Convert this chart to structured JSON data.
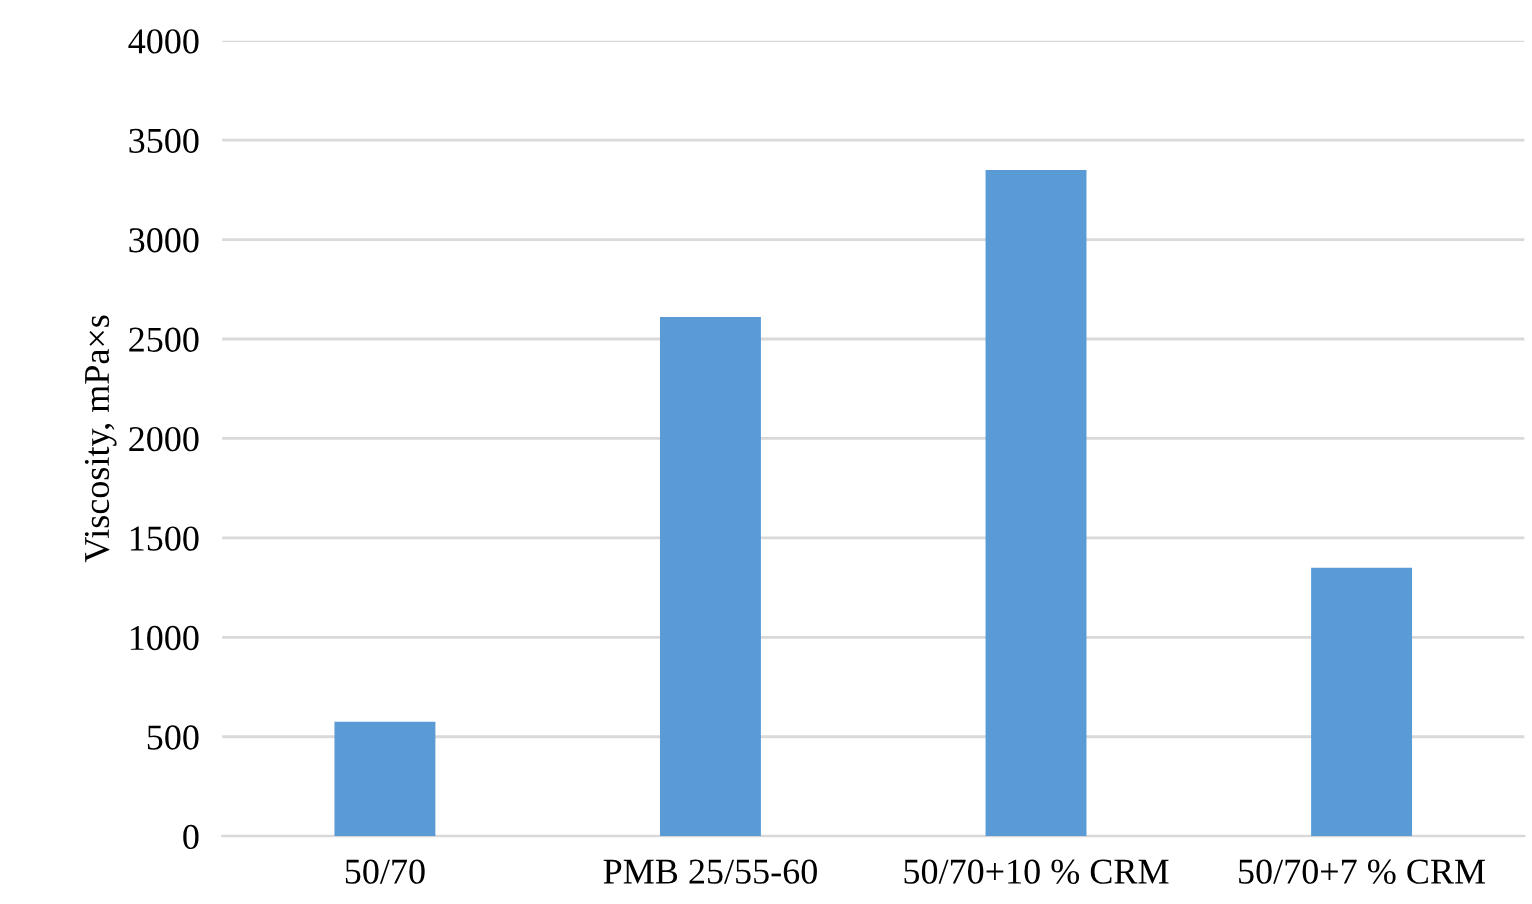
{
  "chart_data": {
    "type": "bar",
    "ylabel": "Viscosity, mPa×s",
    "categories": [
      "50/70",
      "PMB 25/55-60",
      "50/70+10 % CRM",
      "50/70+7 % CRM"
    ],
    "values": [
      575,
      2610,
      3350,
      1350
    ],
    "color": "#5b9bd5",
    "ylim": [
      0,
      4000
    ],
    "yticks": [
      0,
      500,
      1000,
      1500,
      2000,
      2500,
      3000,
      3500,
      4000
    ],
    "grid": "y",
    "legend": false
  }
}
